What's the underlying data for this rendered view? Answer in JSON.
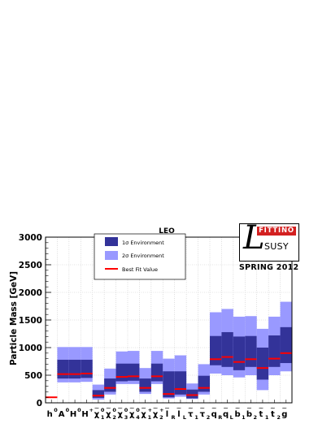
{
  "chart_data": {
    "type": "range-bar",
    "title": "LEO",
    "ylabel": "Particle Mass [GeV]",
    "ylim": [
      0,
      3000
    ],
    "yticks": [
      0,
      500,
      1000,
      1500,
      2000,
      2500,
      3000
    ],
    "grid": true,
    "legend_placement": "top-left",
    "legend": [
      {
        "label": "1σ Environment",
        "color": "#333399"
      },
      {
        "label": "2σ Environment",
        "color": "#9999ff"
      },
      {
        "label": "Best Fit Value",
        "color": "#ff0000"
      }
    ],
    "categories": [
      {
        "base": "h",
        "sup": "0",
        "sub": ""
      },
      {
        "base": "A",
        "sup": "0",
        "sub": ""
      },
      {
        "base": "H",
        "sup": "0",
        "sub": ""
      },
      {
        "base": "H",
        "sup": "+",
        "sub": ""
      },
      {
        "base": "χ",
        "sup": "0",
        "sub": "1",
        "tilde": true
      },
      {
        "base": "χ",
        "sup": "0",
        "sub": "2",
        "tilde": true
      },
      {
        "base": "χ",
        "sup": "0",
        "sub": "3",
        "tilde": true
      },
      {
        "base": "χ",
        "sup": "0",
        "sub": "4",
        "tilde": true
      },
      {
        "base": "χ",
        "sup": "+",
        "sub": "1",
        "tilde": true
      },
      {
        "base": "χ",
        "sup": "+",
        "sub": "2",
        "tilde": true
      },
      {
        "base": "l",
        "sup": "",
        "sub": "R",
        "tilde": true
      },
      {
        "base": "l",
        "sup": "",
        "sub": "L",
        "tilde": true
      },
      {
        "base": "τ",
        "sup": "",
        "sub": "1",
        "tilde": true
      },
      {
        "base": "τ",
        "sup": "",
        "sub": "2",
        "tilde": true
      },
      {
        "base": "q",
        "sup": "",
        "sub": "R",
        "tilde": true
      },
      {
        "base": "q",
        "sup": "",
        "sub": "L",
        "tilde": true
      },
      {
        "base": "b",
        "sup": "",
        "sub": "1",
        "tilde": true
      },
      {
        "base": "b",
        "sup": "",
        "sub": "2",
        "tilde": true
      },
      {
        "base": "t",
        "sup": "",
        "sub": "1",
        "tilde": true
      },
      {
        "base": "t",
        "sup": "",
        "sub": "2",
        "tilde": true
      },
      {
        "base": "g",
        "sup": "",
        "sub": "",
        "tilde": true
      }
    ],
    "sigma2": [
      [
        null,
        null
      ],
      [
        370,
        1010
      ],
      [
        370,
        1010
      ],
      [
        380,
        1010
      ],
      [
        60,
        330
      ],
      [
        150,
        620
      ],
      [
        340,
        930
      ],
      [
        340,
        940
      ],
      [
        160,
        630
      ],
      [
        340,
        940
      ],
      [
        80,
        800
      ],
      [
        110,
        860
      ],
      [
        70,
        350
      ],
      [
        150,
        700
      ],
      [
        530,
        1640
      ],
      [
        500,
        1700
      ],
      [
        460,
        1560
      ],
      [
        500,
        1570
      ],
      [
        230,
        1340
      ],
      [
        500,
        1560
      ],
      [
        570,
        1830
      ]
    ],
    "sigma1": [
      [
        null,
        null
      ],
      [
        440,
        780
      ],
      [
        440,
        780
      ],
      [
        450,
        780
      ],
      [
        90,
        230
      ],
      [
        200,
        440
      ],
      [
        390,
        710
      ],
      [
        400,
        710
      ],
      [
        200,
        440
      ],
      [
        390,
        710
      ],
      [
        100,
        570
      ],
      [
        150,
        570
      ],
      [
        80,
        240
      ],
      [
        200,
        490
      ],
      [
        680,
        1210
      ],
      [
        650,
        1280
      ],
      [
        590,
        1200
      ],
      [
        650,
        1210
      ],
      [
        420,
        1000
      ],
      [
        650,
        1220
      ],
      [
        720,
        1370
      ]
    ],
    "best_fit": [
      100,
      520,
      520,
      530,
      130,
      270,
      470,
      480,
      270,
      480,
      160,
      250,
      140,
      270,
      790,
      830,
      740,
      790,
      630,
      800,
      900
    ]
  },
  "logo": {
    "letter": "L",
    "top": "FITTINO",
    "bottom": "SUSY",
    "year": "SPRING 2012"
  }
}
